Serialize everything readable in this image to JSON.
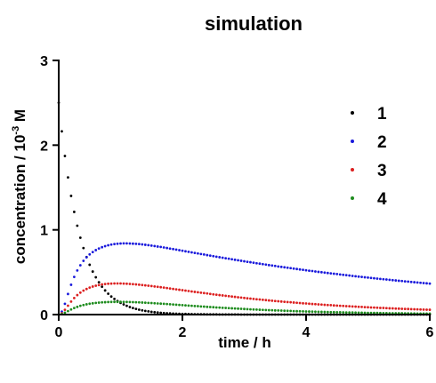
{
  "chart_data": {
    "type": "scatter",
    "title": "simulation",
    "xlabel": "time / h",
    "ylabel_main": "concentration / 10",
    "ylabel_sup": "-3",
    "ylabel_unit": " M",
    "xlim": [
      0,
      6
    ],
    "ylim": [
      0,
      3
    ],
    "x_ticks": [
      "0",
      "2",
      "4",
      "6"
    ],
    "y_ticks": [
      "0",
      "1",
      "2",
      "3"
    ],
    "grid": false,
    "legend_position": "top-right",
    "dt": 0.05,
    "series": [
      {
        "name": "1",
        "color": "#000000",
        "x": [
          0,
          0.05,
          0.1,
          0.15,
          0.2,
          0.25,
          0.3,
          0.35,
          0.4,
          0.45,
          0.5,
          0.55,
          0.6,
          0.65,
          0.7,
          0.75,
          0.8,
          0.85,
          0.9,
          0.95,
          1.0,
          1.05,
          1.1,
          1.15,
          1.2,
          1.25,
          1.3,
          1.35,
          1.4,
          1.45,
          1.5,
          1.55,
          1.6,
          1.65,
          1.7,
          1.75,
          1.8,
          1.85,
          1.9,
          1.95,
          2.0,
          2.05,
          2.1,
          2.15,
          2.2,
          2.25,
          2.3,
          2.35,
          2.4,
          2.45,
          2.5,
          2.55,
          2.6,
          2.65,
          2.7,
          2.75,
          2.8,
          2.85,
          2.9,
          2.95,
          3.0,
          3.05,
          3.1,
          3.15,
          3.2,
          3.25,
          3.3,
          3.35,
          3.4,
          3.45,
          3.5,
          3.55,
          3.6,
          3.65,
          3.7,
          3.75,
          3.8,
          3.85,
          3.9,
          3.95,
          4.0,
          4.05,
          4.1,
          4.15,
          4.2,
          4.25,
          4.3,
          4.35,
          4.4,
          4.45,
          4.5,
          4.55,
          4.6,
          4.65,
          4.7,
          4.75,
          4.8,
          4.85,
          4.9,
          4.95,
          5.0,
          5.05,
          5.1,
          5.15,
          5.2,
          5.25,
          5.3,
          5.35,
          5.4,
          5.45,
          5.5,
          5.55,
          5.6,
          5.65,
          5.7,
          5.75,
          5.8,
          5.85,
          5.9,
          5.95,
          6.0
        ],
        "y": [
          2.5,
          2.163,
          1.872,
          1.619,
          1.401,
          1.212,
          1.049,
          0.907,
          0.785,
          0.679,
          0.588,
          0.508,
          0.44,
          0.381,
          0.329,
          0.285,
          0.246,
          0.213,
          0.185,
          0.16,
          0.138,
          0.12,
          0.103,
          0.089,
          0.077,
          0.067,
          0.058,
          0.05,
          0.043,
          0.038,
          0.032,
          0.028,
          0.024,
          0.021,
          0.018,
          0.016,
          0.014,
          0.012,
          0.01,
          0.009,
          0.008,
          0.007,
          0.006,
          0.005,
          0.004,
          0.004,
          0.003,
          0.003,
          0.002,
          0.002,
          0.002,
          0.002,
          0.001,
          0.001,
          0.001,
          0.001,
          0.001,
          0.001,
          0.001,
          0.0,
          0.0,
          0.0,
          0.0,
          0.0,
          0.0,
          0.0,
          0.0,
          0.0,
          0.0,
          0.0,
          0.0,
          0.0,
          0.0,
          0.0,
          0.0,
          0.0,
          0.0,
          0.0,
          0.0,
          0.0,
          0.0,
          0.0,
          0.0,
          0.0,
          0.0,
          0.0,
          0.0,
          0.0,
          0.0,
          0.0,
          0.0,
          0.0,
          0.0,
          0.0,
          0.0,
          0.0,
          0.0,
          0.0,
          0.0,
          0.0,
          0.0,
          0.0,
          0.0,
          0.0,
          0.0,
          0.0,
          0.0,
          0.0,
          0.0,
          0.0,
          0.0,
          0.0,
          0.0,
          0.0,
          0.0,
          0.0,
          0.0,
          0.0,
          0.0,
          0.0,
          0.0
        ]
      },
      {
        "name": "2",
        "color": "#1a1adc",
        "x": [
          0,
          0.05,
          0.1,
          0.15,
          0.2,
          0.25,
          0.3,
          0.35,
          0.4,
          0.45,
          0.5,
          0.55,
          0.6,
          0.65,
          0.7,
          0.75,
          0.8,
          0.85,
          0.9,
          0.95,
          1.0,
          1.05,
          1.1,
          1.15,
          1.2,
          1.25,
          1.3,
          1.35,
          1.4,
          1.45,
          1.5,
          1.55,
          1.6,
          1.65,
          1.7,
          1.75,
          1.8,
          1.85,
          1.9,
          1.95,
          2.0,
          2.05,
          2.1,
          2.15,
          2.2,
          2.25,
          2.3,
          2.35,
          2.4,
          2.45,
          2.5,
          2.55,
          2.6,
          2.65,
          2.7,
          2.75,
          2.8,
          2.85,
          2.9,
          2.95,
          3.0,
          3.05,
          3.1,
          3.15,
          3.2,
          3.25,
          3.3,
          3.35,
          3.4,
          3.45,
          3.5,
          3.55,
          3.6,
          3.65,
          3.7,
          3.75,
          3.8,
          3.85,
          3.9,
          3.95,
          4.0,
          4.05,
          4.1,
          4.15,
          4.2,
          4.25,
          4.3,
          4.35,
          4.4,
          4.45,
          4.5,
          4.55,
          4.6,
          4.65,
          4.7,
          4.75,
          4.8,
          4.85,
          4.9,
          4.95,
          5.0,
          5.05,
          5.1,
          5.15,
          5.2,
          5.25,
          5.3,
          5.35,
          5.4,
          5.45,
          5.5,
          5.55,
          5.6,
          5.65,
          5.7,
          5.75,
          5.8,
          5.85,
          5.9,
          5.95,
          6.0
        ],
        "y": [
          0.0,
          0.035,
          0.127,
          0.243,
          0.352,
          0.444,
          0.52,
          0.582,
          0.634,
          0.676,
          0.71,
          0.738,
          0.761,
          0.78,
          0.795,
          0.808,
          0.818,
          0.826,
          0.832,
          0.836,
          0.839,
          0.84,
          0.84,
          0.839,
          0.837,
          0.835,
          0.832,
          0.828,
          0.824,
          0.819,
          0.814,
          0.809,
          0.803,
          0.798,
          0.792,
          0.786,
          0.779,
          0.773,
          0.767,
          0.76,
          0.754,
          0.747,
          0.741,
          0.734,
          0.728,
          0.721,
          0.715,
          0.709,
          0.702,
          0.696,
          0.69,
          0.683,
          0.677,
          0.671,
          0.665,
          0.659,
          0.653,
          0.647,
          0.641,
          0.635,
          0.629,
          0.623,
          0.618,
          0.612,
          0.606,
          0.601,
          0.595,
          0.59,
          0.584,
          0.579,
          0.574,
          0.568,
          0.563,
          0.558,
          0.553,
          0.548,
          0.543,
          0.538,
          0.533,
          0.528,
          0.523,
          0.518,
          0.514,
          0.509,
          0.504,
          0.5,
          0.495,
          0.491,
          0.486,
          0.482,
          0.478,
          0.473,
          0.469,
          0.465,
          0.461,
          0.456,
          0.452,
          0.448,
          0.444,
          0.44,
          0.436,
          0.433,
          0.429,
          0.425,
          0.421,
          0.417,
          0.414,
          0.41,
          0.406,
          0.403,
          0.399,
          0.396,
          0.392,
          0.389,
          0.385,
          0.382,
          0.379,
          0.375,
          0.372,
          0.369,
          0.366
        ]
      },
      {
        "name": "3",
        "color": "#dc2020",
        "x": [
          0,
          0.05,
          0.1,
          0.15,
          0.2,
          0.25,
          0.3,
          0.35,
          0.4,
          0.45,
          0.5,
          0.55,
          0.6,
          0.65,
          0.7,
          0.75,
          0.8,
          0.85,
          0.9,
          0.95,
          1.0,
          1.05,
          1.1,
          1.15,
          1.2,
          1.25,
          1.3,
          1.35,
          1.4,
          1.45,
          1.5,
          1.55,
          1.6,
          1.65,
          1.7,
          1.75,
          1.8,
          1.85,
          1.9,
          1.95,
          2.0,
          2.05,
          2.1,
          2.15,
          2.2,
          2.25,
          2.3,
          2.35,
          2.4,
          2.45,
          2.5,
          2.55,
          2.6,
          2.65,
          2.7,
          2.75,
          2.8,
          2.85,
          2.9,
          2.95,
          3.0,
          3.05,
          3.1,
          3.15,
          3.2,
          3.25,
          3.3,
          3.35,
          3.4,
          3.45,
          3.5,
          3.55,
          3.6,
          3.65,
          3.7,
          3.75,
          3.8,
          3.85,
          3.9,
          3.95,
          4.0,
          4.05,
          4.1,
          4.15,
          4.2,
          4.25,
          4.3,
          4.35,
          4.4,
          4.45,
          4.5,
          4.55,
          4.6,
          4.65,
          4.7,
          4.75,
          4.8,
          4.85,
          4.9,
          4.95,
          5.0,
          5.05,
          5.1,
          5.15,
          5.2,
          5.25,
          5.3,
          5.35,
          5.4,
          5.45,
          5.5,
          5.55,
          5.6,
          5.65,
          5.7,
          5.75,
          5.8,
          5.85,
          5.9,
          5.95,
          6.0
        ],
        "y": [
          0.0,
          0.016,
          0.056,
          0.105,
          0.153,
          0.195,
          0.23,
          0.259,
          0.283,
          0.302,
          0.318,
          0.331,
          0.341,
          0.349,
          0.356,
          0.36,
          0.364,
          0.366,
          0.367,
          0.367,
          0.367,
          0.366,
          0.364,
          0.362,
          0.359,
          0.356,
          0.353,
          0.349,
          0.345,
          0.341,
          0.337,
          0.332,
          0.328,
          0.323,
          0.318,
          0.313,
          0.308,
          0.303,
          0.298,
          0.293,
          0.288,
          0.283,
          0.278,
          0.273,
          0.268,
          0.263,
          0.258,
          0.254,
          0.249,
          0.244,
          0.239,
          0.235,
          0.23,
          0.226,
          0.221,
          0.217,
          0.213,
          0.209,
          0.204,
          0.2,
          0.196,
          0.192,
          0.189,
          0.185,
          0.181,
          0.178,
          0.174,
          0.171,
          0.167,
          0.164,
          0.16,
          0.157,
          0.154,
          0.151,
          0.148,
          0.145,
          0.142,
          0.139,
          0.136,
          0.133,
          0.131,
          0.128,
          0.125,
          0.123,
          0.12,
          0.118,
          0.115,
          0.113,
          0.111,
          0.108,
          0.106,
          0.104,
          0.102,
          0.1,
          0.098,
          0.096,
          0.094,
          0.092,
          0.09,
          0.088,
          0.086,
          0.084,
          0.083,
          0.081,
          0.079,
          0.078,
          0.076,
          0.074,
          0.073,
          0.071,
          0.07,
          0.068,
          0.067,
          0.066,
          0.064,
          0.063,
          0.062,
          0.06,
          0.059,
          0.058,
          0.057
        ]
      },
      {
        "name": "4",
        "color": "#1e8c1e",
        "x": [
          0,
          0.05,
          0.1,
          0.15,
          0.2,
          0.25,
          0.3,
          0.35,
          0.4,
          0.45,
          0.5,
          0.55,
          0.6,
          0.65,
          0.7,
          0.75,
          0.8,
          0.85,
          0.9,
          0.95,
          1.0,
          1.05,
          1.1,
          1.15,
          1.2,
          1.25,
          1.3,
          1.35,
          1.4,
          1.45,
          1.5,
          1.55,
          1.6,
          1.65,
          1.7,
          1.75,
          1.8,
          1.85,
          1.9,
          1.95,
          2.0,
          2.05,
          2.1,
          2.15,
          2.2,
          2.25,
          2.3,
          2.35,
          2.4,
          2.45,
          2.5,
          2.55,
          2.6,
          2.65,
          2.7,
          2.75,
          2.8,
          2.85,
          2.9,
          2.95,
          3.0,
          3.05,
          3.1,
          3.15,
          3.2,
          3.25,
          3.3,
          3.35,
          3.4,
          3.45,
          3.5,
          3.55,
          3.6,
          3.65,
          3.7,
          3.75,
          3.8,
          3.85,
          3.9,
          3.95,
          4.0,
          4.05,
          4.1,
          4.15,
          4.2,
          4.25,
          4.3,
          4.35,
          4.4,
          4.45,
          4.5,
          4.55,
          4.6,
          4.65,
          4.7,
          4.75,
          4.8,
          4.85,
          4.9,
          4.95,
          5.0,
          5.05,
          5.1,
          5.15,
          5.2,
          5.25,
          5.3,
          5.35,
          5.4,
          5.45,
          5.5,
          5.55,
          5.6,
          5.65,
          5.7,
          5.75,
          5.8,
          5.85,
          5.9,
          5.95,
          6.0
        ],
        "y": [
          0.0,
          0.006,
          0.022,
          0.041,
          0.06,
          0.077,
          0.091,
          0.103,
          0.113,
          0.121,
          0.128,
          0.133,
          0.138,
          0.141,
          0.144,
          0.146,
          0.148,
          0.149,
          0.15,
          0.15,
          0.15,
          0.149,
          0.149,
          0.148,
          0.147,
          0.145,
          0.144,
          0.142,
          0.14,
          0.138,
          0.136,
          0.134,
          0.131,
          0.129,
          0.127,
          0.124,
          0.122,
          0.119,
          0.117,
          0.114,
          0.111,
          0.109,
          0.106,
          0.104,
          0.101,
          0.099,
          0.096,
          0.094,
          0.091,
          0.089,
          0.087,
          0.084,
          0.082,
          0.08,
          0.078,
          0.076,
          0.074,
          0.072,
          0.07,
          0.068,
          0.066,
          0.064,
          0.062,
          0.06,
          0.059,
          0.057,
          0.055,
          0.054,
          0.052,
          0.051,
          0.049,
          0.048,
          0.047,
          0.045,
          0.044,
          0.043,
          0.041,
          0.04,
          0.039,
          0.038,
          0.037,
          0.036,
          0.035,
          0.034,
          0.033,
          0.032,
          0.031,
          0.03,
          0.029,
          0.028,
          0.027,
          0.027,
          0.026,
          0.025,
          0.024,
          0.024,
          0.023,
          0.022,
          0.022,
          0.021,
          0.02,
          0.02,
          0.019,
          0.019,
          0.018,
          0.017,
          0.017,
          0.016,
          0.016,
          0.015,
          0.015,
          0.015,
          0.014,
          0.014,
          0.013,
          0.013,
          0.012,
          0.012,
          0.012,
          0.011,
          0.011
        ]
      }
    ]
  }
}
